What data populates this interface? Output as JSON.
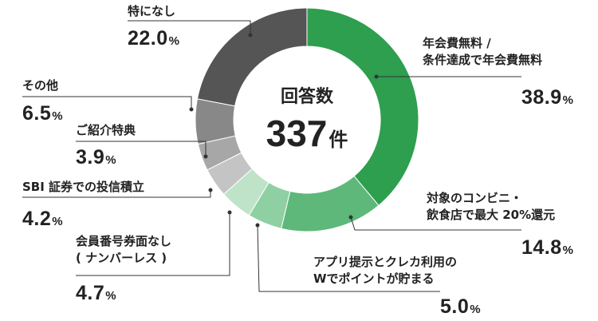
{
  "chart_data": {
    "type": "pie",
    "center_label": "回答数",
    "total": "337",
    "total_unit": "件",
    "slices": [
      {
        "label_lines": [
          "年会費無料 /",
          "条件達成で年会費無料"
        ],
        "value": 38.9,
        "color": "#2e9e4f"
      },
      {
        "label_lines": [
          "対象のコンビニ・",
          "飲食店で最大 20%還元"
        ],
        "value": 14.8,
        "color": "#5db87a"
      },
      {
        "label_lines": [
          "アプリ提示とクレカ利用の",
          "Wでポイントが貯まる"
        ],
        "value": 5.0,
        "color": "#8fd0a3"
      },
      {
        "label_lines": [
          "会員番号券面なし",
          "( ナンバーレス )"
        ],
        "value": 4.7,
        "color": "#bfe3c9"
      },
      {
        "label_lines": [
          "SBI 証券での投信積立"
        ],
        "value": 4.2,
        "color": "#c4c4c4"
      },
      {
        "label_lines": [
          "ご紹介特典"
        ],
        "value": 3.9,
        "color": "#a7a7a7"
      },
      {
        "label_lines": [
          "その他"
        ],
        "value": 6.5,
        "color": "#888888"
      },
      {
        "label_lines": [
          "特になし"
        ],
        "value": 22.0,
        "color": "#555555"
      }
    ],
    "value_text": [
      "38.9",
      "14.8",
      "5.0",
      "4.7",
      "4.2",
      "3.9",
      "6.5",
      "22.0"
    ],
    "unit": "%"
  }
}
